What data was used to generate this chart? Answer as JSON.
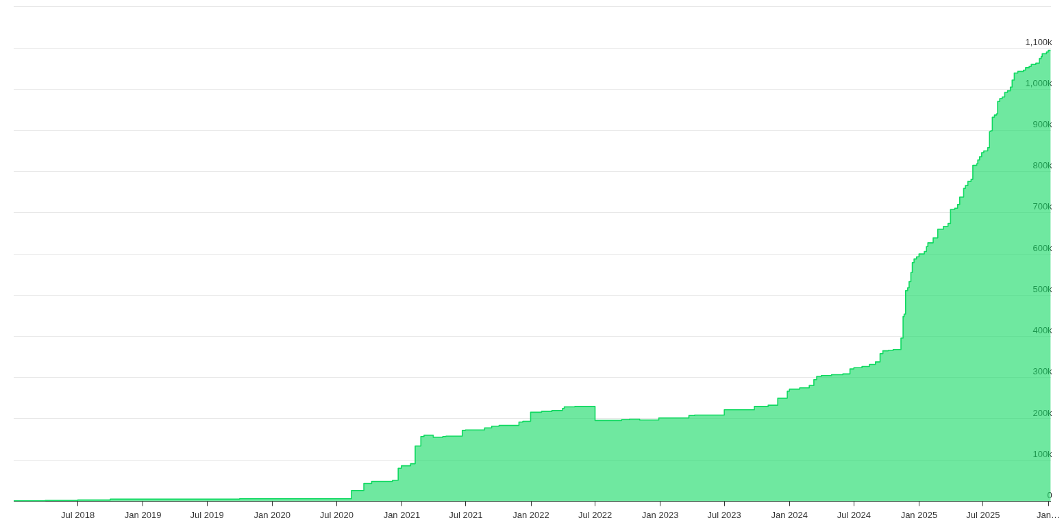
{
  "chart_data": {
    "type": "step",
    "color": "#0fd960",
    "x": [
      "2018-01-01",
      "2018-03-31",
      "2018-07-01",
      "2018-10-01",
      "2019-10-01",
      "2020-08-12",
      "2020-09-16",
      "2020-10-08",
      "2020-12-06",
      "2020-12-22",
      "2020-12-31",
      "2021-01-26",
      "2021-02-08",
      "2021-02-24",
      "2021-03-05",
      "2021-03-31",
      "2021-04-27",
      "2021-05-06",
      "2021-06-21",
      "2021-06-30",
      "2021-08-23",
      "2021-09-12",
      "2021-10-03",
      "2021-11-28",
      "2021-12-09",
      "2021-12-31",
      "2022-01-31",
      "2022-03-01",
      "2022-03-31",
      "2022-04-05",
      "2022-05-05",
      "2022-07-01",
      "2022-09-14",
      "2022-10-06",
      "2022-11-04",
      "2022-12-28",
      "2023-03-23",
      "2023-04-08",
      "2023-07-01",
      "2023-09-24",
      "2023-11-02",
      "2023-11-29",
      "2023-12-26",
      "2024-01-01",
      "2024-01-30",
      "2024-02-26",
      "2024-03-10",
      "2024-03-18",
      "2024-03-31",
      "2024-04-29",
      "2024-05-31",
      "2024-06-20",
      "2024-07-01",
      "2024-07-24",
      "2024-08-14",
      "2024-08-31",
      "2024-09-13",
      "2024-09-21",
      "2024-10-06",
      "2024-10-20",
      "2024-11-11",
      "2024-11-17",
      "2024-11-20",
      "2024-11-24",
      "2024-11-30",
      "2024-12-04",
      "2024-12-09",
      "2024-12-13",
      "2024-12-18",
      "2024-12-25",
      "2025-01-01",
      "2025-01-16",
      "2025-01-22",
      "2025-01-26",
      "2025-02-10",
      "2025-02-23",
      "2025-03-11",
      "2025-03-24",
      "2025-03-31",
      "2025-04-12",
      "2025-04-20",
      "2025-04-26",
      "2025-05-07",
      "2025-05-12",
      "2025-05-19",
      "2025-05-28",
      "2025-06-02",
      "2025-06-13",
      "2025-06-16",
      "2025-06-21",
      "2025-06-27",
      "2025-07-03",
      "2025-07-14",
      "2025-07-19",
      "2025-07-23",
      "2025-07-27",
      "2025-08-02",
      "2025-08-08",
      "2025-08-11",
      "2025-08-17",
      "2025-08-24",
      "2025-08-31",
      "2025-09-08",
      "2025-09-16",
      "2025-09-21",
      "2025-09-27",
      "2025-10-07",
      "2025-10-23",
      "2025-10-29",
      "2025-11-08",
      "2025-11-14",
      "2025-11-27",
      "2025-12-07",
      "2025-12-12",
      "2025-12-15",
      "2025-12-27",
      "2026-01-01",
      "2026-01-08"
    ],
    "values": [
      1000,
      2000,
      3000,
      5000,
      6000,
      26000,
      43000,
      48000,
      51000,
      80000,
      86000,
      91000,
      134000,
      157000,
      160000,
      155000,
      157000,
      158000,
      172000,
      173000,
      178000,
      182000,
      184000,
      192000,
      194000,
      216000,
      218000,
      220000,
      225000,
      229000,
      230000,
      196000,
      198000,
      199000,
      197000,
      202000,
      208000,
      209000,
      222000,
      230000,
      233000,
      250000,
      267000,
      272000,
      275000,
      281000,
      295000,
      303000,
      305000,
      307000,
      309000,
      321000,
      324000,
      327000,
      332000,
      338000,
      358000,
      365000,
      366000,
      368000,
      396000,
      448000,
      454000,
      511000,
      518000,
      533000,
      555000,
      579000,
      588000,
      593000,
      600000,
      606000,
      618000,
      627000,
      639000,
      660000,
      667000,
      674000,
      708000,
      711000,
      720000,
      738000,
      759000,
      766000,
      776000,
      781000,
      815000,
      819000,
      828000,
      836000,
      846000,
      850000,
      858000,
      897000,
      899000,
      932000,
      937000,
      940000,
      970000,
      977000,
      981000,
      992000,
      996000,
      1005000,
      1022000,
      1039000,
      1043000,
      1046000,
      1052000,
      1055000,
      1060000,
      1063000,
      1074000,
      1079000,
      1086000,
      1090000,
      1094000,
      1094000
    ],
    "xlim": [
      "2018-01-01",
      "2026-01-08"
    ],
    "xticks": [
      {
        "value": "2018-07-01",
        "label": "Jul 2018"
      },
      {
        "value": "2019-01-01",
        "label": "Jan 2019"
      },
      {
        "value": "2019-07-01",
        "label": "Jul 2019"
      },
      {
        "value": "2020-01-01",
        "label": "Jan 2020"
      },
      {
        "value": "2020-07-01",
        "label": "Jul 2020"
      },
      {
        "value": "2021-01-01",
        "label": "Jan 2021"
      },
      {
        "value": "2021-07-01",
        "label": "Jul 2021"
      },
      {
        "value": "2022-01-01",
        "label": "Jan 2022"
      },
      {
        "value": "2022-07-01",
        "label": "Jul 2022"
      },
      {
        "value": "2023-01-01",
        "label": "Jan 2023"
      },
      {
        "value": "2023-07-01",
        "label": "Jul 2023"
      },
      {
        "value": "2024-01-01",
        "label": "Jan 2024"
      },
      {
        "value": "2024-07-01",
        "label": "Jul 2024"
      },
      {
        "value": "2025-01-01",
        "label": "Jan 2025"
      },
      {
        "value": "2025-07-01",
        "label": "Jul 2025"
      },
      {
        "value": "2026-01-01",
        "label": "Jan…"
      }
    ],
    "ylim": [
      0,
      1200000
    ],
    "yticks": [
      0,
      {
        "value": 100000,
        "label": "100k"
      },
      {
        "value": 200000,
        "label": "200k"
      },
      {
        "value": 300000,
        "label": "300k"
      },
      {
        "value": 400000,
        "label": "400k"
      },
      {
        "value": 500000,
        "label": "500k"
      },
      {
        "value": 600000,
        "label": "600k"
      },
      {
        "value": 700000,
        "label": "700k"
      },
      {
        "value": 800000,
        "label": "800k"
      },
      {
        "value": 900000,
        "label": "900k"
      },
      {
        "value": 1000000,
        "label": "1,000k"
      },
      {
        "value": 1100000,
        "label": "1,100k"
      },
      {
        "value": 1200000,
        "label": null
      }
    ],
    "grid": "y"
  }
}
